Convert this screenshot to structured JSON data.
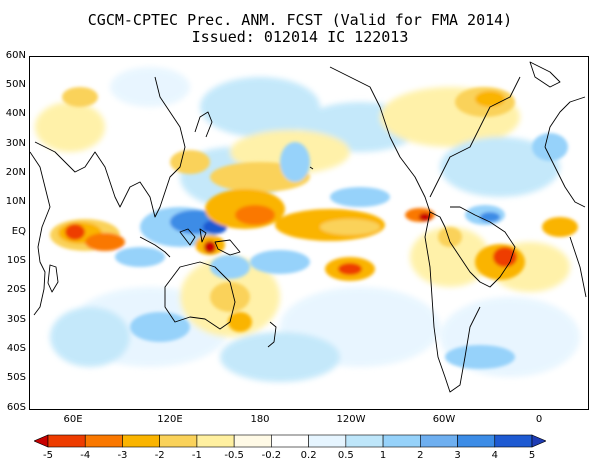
{
  "title_line1": "CGCM-CPTEC Prec. ANM. FCST  (Valid for FMA 2014)",
  "title_line2": "Issued:  012014 IC 122013",
  "lat_labels": [
    "60N",
    "50N",
    "40N",
    "30N",
    "20N",
    "10N",
    "EQ",
    "10S",
    "20S",
    "30S",
    "40S",
    "50S",
    "60S"
  ],
  "lon_labels": [
    "60E",
    "120E",
    "180",
    "120W",
    "60W",
    "0"
  ],
  "colorbar": {
    "labels": [
      "-5",
      "-4",
      "-3",
      "-2",
      "-1",
      "-0.5",
      "-0.2",
      "0.2",
      "0.5",
      "1",
      "2",
      "3",
      "4",
      "5"
    ],
    "colors": [
      "#c80000",
      "#ee3c00",
      "#fa7800",
      "#fab400",
      "#fad25a",
      "#fff0a0",
      "#fffae6",
      "#ffffff",
      "#e6f5ff",
      "#bee6fa",
      "#96d2fa",
      "#6eaff0",
      "#3c8ce6",
      "#1e5ad2",
      "#1e3cb4"
    ]
  },
  "colors": {
    "coast": "#000000",
    "frame": "#000000"
  }
}
